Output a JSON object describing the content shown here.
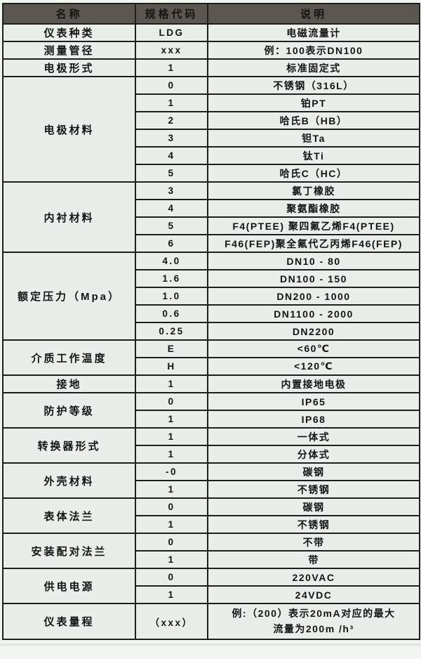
{
  "colors": {
    "header_bg": "#5b5750",
    "header_text": "#ffffff",
    "body_bg": "#e9eeea",
    "border": "#1f1f1f",
    "page_bg": "#f3f5f1",
    "text": "#141414"
  },
  "table": {
    "headers": [
      "名称",
      "规格代码",
      "说明"
    ],
    "sections": [
      {
        "name": "仪表种类",
        "rows": [
          {
            "code": "LDG",
            "desc": "电磁流量计"
          }
        ]
      },
      {
        "name": "测量管径",
        "rows": [
          {
            "code": "xxx",
            "desc": "例：100表示DN100"
          }
        ]
      },
      {
        "name": "电极形式",
        "rows": [
          {
            "code": "1",
            "desc": "标准固定式"
          }
        ]
      },
      {
        "name": "电极材料",
        "rows": [
          {
            "code": "0",
            "desc": "不锈钢（316L）"
          },
          {
            "code": "1",
            "desc": "铂PT"
          },
          {
            "code": "2",
            "desc": "哈氏B（HB）"
          },
          {
            "code": "3",
            "desc": "钽Ta"
          },
          {
            "code": "4",
            "desc": "钛Ti"
          },
          {
            "code": "5",
            "desc": "哈氏C（HC）"
          }
        ]
      },
      {
        "name": "内衬材料",
        "rows": [
          {
            "code": "3",
            "desc": "氯丁橡胶"
          },
          {
            "code": "4",
            "desc": "聚氨酯橡胶"
          },
          {
            "code": "5",
            "desc": "F4(PTEE) 聚四氟乙烯F4(PTEE)"
          },
          {
            "code": "6",
            "desc": "F46(FEP)聚全氟代乙丙烯F46(FEP)"
          }
        ]
      },
      {
        "name": "额定压力（Mpa）",
        "rows": [
          {
            "code": "4.0",
            "desc": "DN10 - 80"
          },
          {
            "code": "1.6",
            "desc": "DN100 - 150"
          },
          {
            "code": "1.0",
            "desc": "DN200 - 1000"
          },
          {
            "code": "0.6",
            "desc": "DN1100 - 2000"
          },
          {
            "code": "0.25",
            "desc": "DN2200"
          }
        ]
      },
      {
        "name": "介质工作温度",
        "rows": [
          {
            "code": "E",
            "desc": "<60℃"
          },
          {
            "code": "H",
            "desc": "<120℃"
          }
        ]
      },
      {
        "name": "接地",
        "rows": [
          {
            "code": "1",
            "desc": "内置接地电极"
          }
        ]
      },
      {
        "name": "防护等级",
        "rows": [
          {
            "code": "0",
            "desc": "IP65"
          },
          {
            "code": "1",
            "desc": "IP68"
          }
        ]
      },
      {
        "name": "转换器形式",
        "rows": [
          {
            "code": "1",
            "desc": "一体式"
          },
          {
            "code": "1",
            "desc": "分体式"
          }
        ]
      },
      {
        "name": "外壳材料",
        "rows": [
          {
            "code": "-0",
            "desc": "碳钢"
          },
          {
            "code": "1",
            "desc": "不锈钢"
          }
        ]
      },
      {
        "name": "表体法兰",
        "rows": [
          {
            "code": "0",
            "desc": "碳钢"
          },
          {
            "code": "1",
            "desc": "不锈钢"
          }
        ]
      },
      {
        "name": "安装配对法兰",
        "rows": [
          {
            "code": "0",
            "desc": "不带"
          },
          {
            "code": "1",
            "desc": "带"
          }
        ]
      },
      {
        "name": "供电电源",
        "rows": [
          {
            "code": "0",
            "desc": "220VAC"
          },
          {
            "code": "1",
            "desc": "24VDC"
          }
        ]
      },
      {
        "name": "仪表量程",
        "rows": [
          {
            "code": "（xxx）",
            "tall": true,
            "desc_lines": [
              "例:（200）表示20mA对应的最大",
              "流量为200m /h³"
            ]
          }
        ]
      }
    ]
  }
}
